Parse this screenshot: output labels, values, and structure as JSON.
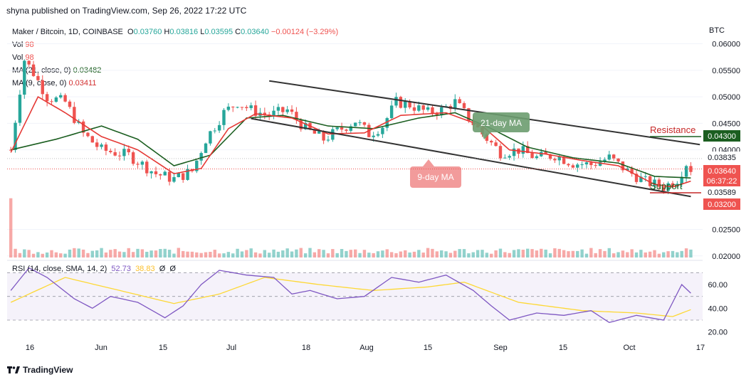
{
  "header": {
    "published": "shyna published on TradingView.com, Sep 26, 2022 17:22 UTC"
  },
  "legend": {
    "symbol": "Maker / Bitcoin, 1D, COINBASE",
    "o_label": "O",
    "o": "0.03760",
    "h_label": "H",
    "h": "0.03816",
    "l_label": "L",
    "l": "0.03595",
    "c_label": "C",
    "c": "0.03640",
    "change": "−0.00124 (−3.29%)",
    "vol1_label": "Vol",
    "vol1": "98",
    "vol2_label": "Vol",
    "vol2": "98",
    "ma21_label": "MA (21, close, 0)",
    "ma21": "0.03482",
    "ma9_label": "MA (9, close, 0)",
    "ma9": "0.03411"
  },
  "rsi_legend": {
    "label": "RSI (14, close, SMA, 14, 2)",
    "rsi": "52.73",
    "sma": "38.83",
    "extra1": "Ø",
    "extra2": "Ø"
  },
  "footer": {
    "brand": "TradingView"
  },
  "colors": {
    "up": "#26a69a",
    "down": "#ef5350",
    "ma21": "#1b5e20",
    "ma9": "#e53935",
    "rsi": "#7e57c2",
    "rsi_sma": "#fdd835",
    "channel": "#333333"
  },
  "chart_data": {
    "type": "candlestick",
    "currency": "BTC",
    "y_ticks": [
      "0.06000",
      "0.05500",
      "0.05000",
      "0.04500",
      "0.04000",
      "0.02500",
      "0.02000"
    ],
    "ylim": [
      0.0197,
      0.0645
    ],
    "x_ticks": [
      "16",
      "Jun",
      "15",
      "Jul",
      "18",
      "Aug",
      "15",
      "Sep",
      "15",
      "Oct",
      "17"
    ],
    "price_labels": [
      {
        "text": "0.04300",
        "value": 0.043,
        "bg": "#1b5e20"
      },
      {
        "text": "0.03835",
        "value": 0.03835,
        "bg": "#ffffff"
      },
      {
        "text": "0.03640",
        "value": 0.0364,
        "bg": "#ef5350"
      },
      {
        "text": "06:37:22",
        "value": 0.0354,
        "bg": "#ef5350"
      },
      {
        "text": "0.03589",
        "value": 0.03589,
        "bg": "#ffffff"
      },
      {
        "text": "0.03200",
        "value": 0.032,
        "bg": "#ef5350"
      }
    ],
    "annotations": {
      "resistance": "Resistance",
      "support": "Support",
      "ma21_callout": "21-day MA",
      "ma9_callout": "9-day MA"
    },
    "channel": {
      "upper": [
        [
          57,
          0.053
        ],
        [
          152,
          0.041
        ]
      ],
      "lower": [
        [
          53,
          0.0459
        ],
        [
          150,
          0.0312
        ]
      ]
    },
    "candles_keypoints": [
      [
        0,
        0.04
      ],
      [
        3,
        0.057
      ],
      [
        5,
        0.0545
      ],
      [
        8,
        0.05
      ],
      [
        12,
        0.049
      ],
      [
        16,
        0.043
      ],
      [
        20,
        0.04
      ],
      [
        26,
        0.039
      ],
      [
        32,
        0.0355
      ],
      [
        36,
        0.0345
      ],
      [
        40,
        0.036
      ],
      [
        43,
        0.042
      ],
      [
        47,
        0.047
      ],
      [
        50,
        0.049
      ],
      [
        53,
        0.0475
      ],
      [
        57,
        0.0465
      ],
      [
        61,
        0.0475
      ],
      [
        65,
        0.044
      ],
      [
        69,
        0.042
      ],
      [
        73,
        0.044
      ],
      [
        76,
        0.0455
      ],
      [
        79,
        0.043
      ],
      [
        82,
        0.0445
      ],
      [
        85,
        0.049
      ],
      [
        88,
        0.0485
      ],
      [
        92,
        0.047
      ],
      [
        95,
        0.0475
      ],
      [
        98,
        0.049
      ],
      [
        101,
        0.046
      ],
      [
        104,
        0.043
      ],
      [
        108,
        0.0395
      ],
      [
        112,
        0.04
      ],
      [
        116,
        0.0385
      ],
      [
        120,
        0.039
      ],
      [
        124,
        0.0375
      ],
      [
        128,
        0.0372
      ],
      [
        132,
        0.0385
      ],
      [
        136,
        0.036
      ],
      [
        140,
        0.034
      ],
      [
        144,
        0.033
      ],
      [
        147,
        0.0345
      ],
      [
        149,
        0.0375
      ],
      [
        150,
        0.0364
      ]
    ],
    "ma21_keypoints": [
      [
        0,
        0.04
      ],
      [
        10,
        0.042
      ],
      [
        20,
        0.0445
      ],
      [
        28,
        0.042
      ],
      [
        36,
        0.037
      ],
      [
        44,
        0.039
      ],
      [
        52,
        0.046
      ],
      [
        60,
        0.0465
      ],
      [
        70,
        0.0445
      ],
      [
        80,
        0.044
      ],
      [
        90,
        0.046
      ],
      [
        98,
        0.047
      ],
      [
        106,
        0.044
      ],
      [
        114,
        0.0405
      ],
      [
        124,
        0.0385
      ],
      [
        134,
        0.0375
      ],
      [
        142,
        0.035
      ],
      [
        150,
        0.0347
      ]
    ],
    "ma9_keypoints": [
      [
        0,
        0.0395
      ],
      [
        6,
        0.05
      ],
      [
        12,
        0.047
      ],
      [
        20,
        0.0425
      ],
      [
        28,
        0.04
      ],
      [
        36,
        0.0355
      ],
      [
        42,
        0.0365
      ],
      [
        48,
        0.044
      ],
      [
        54,
        0.0468
      ],
      [
        62,
        0.046
      ],
      [
        70,
        0.043
      ],
      [
        78,
        0.0432
      ],
      [
        86,
        0.0465
      ],
      [
        96,
        0.047
      ],
      [
        104,
        0.0445
      ],
      [
        110,
        0.04
      ],
      [
        118,
        0.0392
      ],
      [
        126,
        0.038
      ],
      [
        134,
        0.037
      ],
      [
        142,
        0.0335
      ],
      [
        146,
        0.033
      ],
      [
        150,
        0.0341
      ]
    ],
    "rsi": {
      "ticks": [
        "60.00",
        "40.00",
        "20.00"
      ],
      "ylim": [
        18,
        78
      ],
      "band": [
        30,
        70
      ],
      "rsi_keypoints": [
        [
          0,
          55
        ],
        [
          4,
          74
        ],
        [
          8,
          66
        ],
        [
          14,
          48
        ],
        [
          18,
          40
        ],
        [
          22,
          50
        ],
        [
          28,
          45
        ],
        [
          34,
          32
        ],
        [
          38,
          42
        ],
        [
          42,
          60
        ],
        [
          46,
          72
        ],
        [
          52,
          68
        ],
        [
          58,
          66
        ],
        [
          62,
          52
        ],
        [
          66,
          55
        ],
        [
          72,
          48
        ],
        [
          78,
          50
        ],
        [
          84,
          66
        ],
        [
          90,
          62
        ],
        [
          96,
          68
        ],
        [
          102,
          55
        ],
        [
          106,
          42
        ],
        [
          110,
          30
        ],
        [
          116,
          36
        ],
        [
          122,
          34
        ],
        [
          128,
          38
        ],
        [
          132,
          28
        ],
        [
          138,
          34
        ],
        [
          144,
          30
        ],
        [
          148,
          60
        ],
        [
          150,
          52.73
        ]
      ],
      "sma_keypoints": [
        [
          0,
          45
        ],
        [
          12,
          66
        ],
        [
          24,
          55
        ],
        [
          36,
          44
        ],
        [
          46,
          52
        ],
        [
          56,
          66
        ],
        [
          68,
          60
        ],
        [
          80,
          55
        ],
        [
          92,
          58
        ],
        [
          100,
          62
        ],
        [
          112,
          45
        ],
        [
          126,
          38
        ],
        [
          138,
          36
        ],
        [
          146,
          33
        ],
        [
          150,
          38.83
        ]
      ]
    },
    "volume_scale": [
      0,
      100
    ],
    "volume_first": 98
  }
}
